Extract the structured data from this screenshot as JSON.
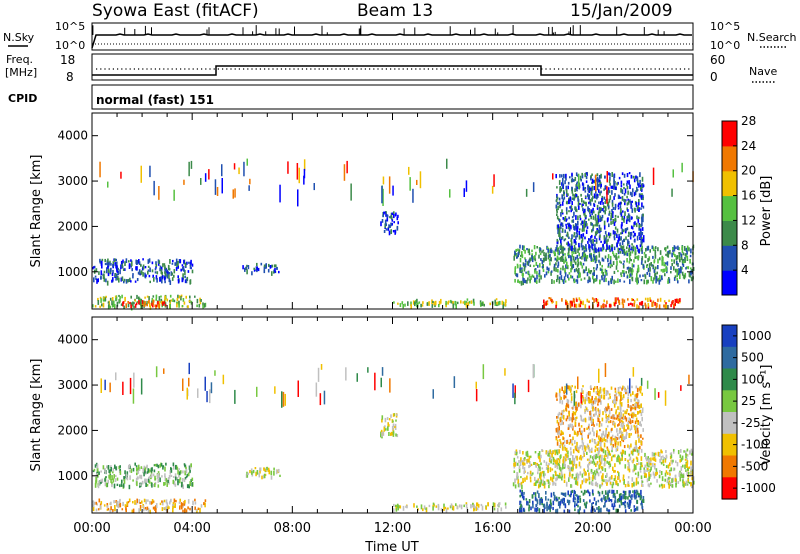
{
  "header": {
    "station": "Syowa East (fitACF)",
    "beam": "Beam 13",
    "date": "15/Jan/2009"
  },
  "top_panels": {
    "nsky_label": "N.Sky",
    "nsearch_label": "N.Search",
    "freq_label_1": "Freq.",
    "freq_label_2": "[MHz]",
    "nave_label": "Nave",
    "cpid_label": "CPID",
    "count_ticks": [
      "10^5",
      "10^0"
    ],
    "freq_ticks": [
      "18",
      "8"
    ],
    "nave_ticks": [
      "60",
      "0"
    ],
    "cpid_text": "normal (fast) 151"
  },
  "chart_data": [
    {
      "type": "heatmap",
      "title": "",
      "xlabel": "",
      "ylabel": "Slant Range [km]",
      "xlim": [
        0,
        24
      ],
      "ylim": [
        180,
        4500
      ],
      "y_ticks": [
        "1000",
        "2000",
        "3000",
        "4000"
      ],
      "colorbar": {
        "label": "Power [dB]",
        "ticks": [
          "4",
          "8",
          "12",
          "16",
          "20",
          "24",
          "28"
        ],
        "values": [
          4,
          8,
          12,
          16,
          20,
          24,
          28
        ],
        "colors": [
          "#0000ff",
          "#2050b0",
          "#3c8a4a",
          "#55c040",
          "#f0c000",
          "#f07800",
          "#ff0000"
        ]
      },
      "regions": [
        {
          "x": [
            0.0,
            4.0
          ],
          "y": [
            800,
            1300
          ],
          "level": 8
        },
        {
          "x": [
            0.0,
            4.5
          ],
          "y": [
            250,
            500
          ],
          "level": 16
        },
        {
          "x": [
            1.0,
            3.0
          ],
          "y": [
            260,
            380
          ],
          "level": 28
        },
        {
          "x": [
            6.0,
            7.5
          ],
          "y": [
            1000,
            1200
          ],
          "level": 8
        },
        {
          "x": [
            11.5,
            12.2
          ],
          "y": [
            1900,
            2400
          ],
          "level": 8
        },
        {
          "x": [
            12.0,
            16.5
          ],
          "y": [
            280,
            420
          ],
          "level": 16
        },
        {
          "x": [
            16.8,
            24.0
          ],
          "y": [
            800,
            1600
          ],
          "level": 12
        },
        {
          "x": [
            18.0,
            23.5
          ],
          "y": [
            250,
            450
          ],
          "level": 24
        },
        {
          "x": [
            18.5,
            22.0
          ],
          "y": [
            1500,
            3200
          ],
          "level": 8
        }
      ]
    },
    {
      "type": "heatmap",
      "title": "",
      "xlabel": "Time UT",
      "ylabel": "Slant Range [km]",
      "xlim": [
        0,
        24
      ],
      "ylim": [
        180,
        4500
      ],
      "x_ticks": [
        "00:00",
        "04:00",
        "08:00",
        "12:00",
        "16:00",
        "20:00",
        "00:00"
      ],
      "y_ticks": [
        "1000",
        "2000",
        "3000",
        "4000"
      ],
      "colorbar": {
        "label": "Velocity [m s⁻¹]",
        "ticks": [
          "1000",
          "500",
          "100",
          "25",
          "-25",
          "-100",
          "-500",
          "-1000"
        ],
        "values": [
          1000,
          500,
          100,
          25,
          -25,
          -100,
          -500,
          -1000
        ],
        "colors": [
          "#1840c0",
          "#2f6ba0",
          "#2f8a4a",
          "#78c840",
          "#c0c0c0",
          "#f0c000",
          "#f07800",
          "#ff0000"
        ]
      },
      "regions": [
        {
          "x": [
            0.0,
            4.0
          ],
          "y": [
            800,
            1300
          ],
          "level": 25
        },
        {
          "x": [
            0.0,
            4.5
          ],
          "y": [
            250,
            500
          ],
          "level": -100
        },
        {
          "x": [
            6.0,
            7.5
          ],
          "y": [
            1000,
            1200
          ],
          "level": -25
        },
        {
          "x": [
            11.5,
            12.2
          ],
          "y": [
            1900,
            2400
          ],
          "level": -25
        },
        {
          "x": [
            12.0,
            16.5
          ],
          "y": [
            280,
            420
          ],
          "level": -25
        },
        {
          "x": [
            16.8,
            24.0
          ],
          "y": [
            800,
            1600
          ],
          "level": -25
        },
        {
          "x": [
            17.0,
            22.0
          ],
          "y": [
            250,
            700
          ],
          "level": 500
        },
        {
          "x": [
            18.5,
            22.0
          ],
          "y": [
            1600,
            3000
          ],
          "level": -100
        }
      ]
    }
  ]
}
